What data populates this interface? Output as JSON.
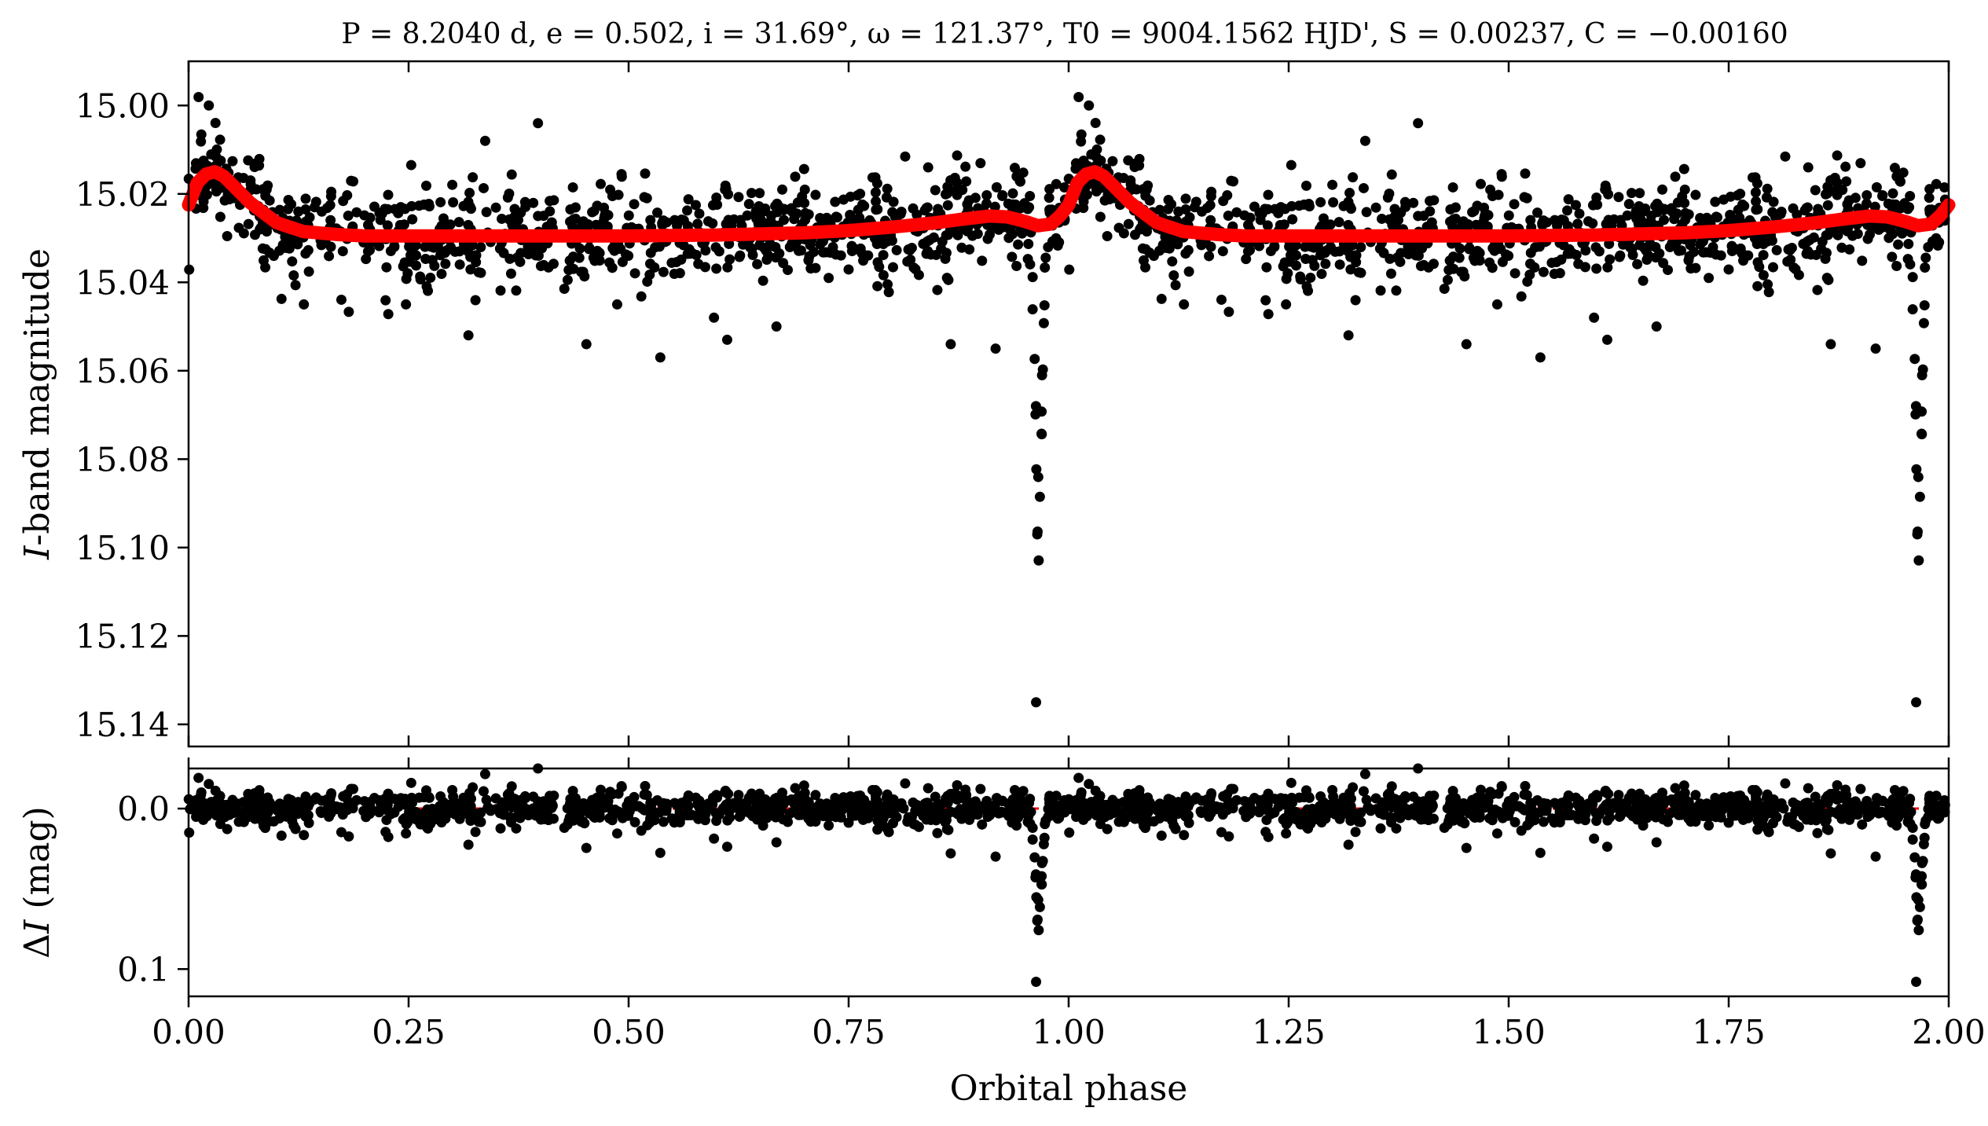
{
  "chart_data": [
    {
      "type": "scatter",
      "panel": "top",
      "title": "P = 8.2040 d, e = 0.502, i = 31.69°, ω = 121.37°, T0 = 9004.1562 HJD', S = 0.00237, C = −0.00160",
      "xlabel": "",
      "ylabel_italic": "I",
      "ylabel_rest": "-band magnitude",
      "xlim": [
        0.0,
        2.0
      ],
      "ylim": [
        15.145,
        14.99
      ],
      "y_inverted": true,
      "x_ticks": [
        0.0,
        0.25,
        0.5,
        0.75,
        1.0,
        1.25,
        1.5,
        1.75,
        2.0
      ],
      "y_ticks": [
        15.0,
        15.02,
        15.04,
        15.06,
        15.08,
        15.1,
        15.12,
        15.14
      ],
      "y_tick_labels": [
        "15.00",
        "15.02",
        "15.04",
        "15.06",
        "15.08",
        "15.10",
        "15.12",
        "15.14"
      ],
      "series": [
        {
          "role": "observations",
          "color": "#000000",
          "baseline_mag": 15.029,
          "scatter_mag": 0.0055,
          "points_per_cycle": 900,
          "eclipse": {
            "phase": 0.966,
            "depth": 0.075,
            "width": 0.008
          },
          "outliers": [
            {
              "x": 0.023,
              "y": 15.0
            },
            {
              "x": 0.397,
              "y": 15.004
            },
            {
              "x": 0.337,
              "y": 15.008
            },
            {
              "x": 0.318,
              "y": 15.052
            },
            {
              "x": 0.452,
              "y": 15.054
            },
            {
              "x": 0.536,
              "y": 15.057
            },
            {
              "x": 0.597,
              "y": 15.048
            },
            {
              "x": 0.612,
              "y": 15.053
            },
            {
              "x": 0.668,
              "y": 15.05
            },
            {
              "x": 0.866,
              "y": 15.054
            },
            {
              "x": 0.917,
              "y": 15.055
            },
            {
              "x": 0.963,
              "y": 15.135
            },
            {
              "x": 0.131,
              "y": 15.045
            },
            {
              "x": 0.247,
              "y": 15.045
            },
            {
              "x": 0.487,
              "y": 15.045
            }
          ]
        },
        {
          "role": "model",
          "color": "#ff0000",
          "x": [
            0.0,
            0.01,
            0.02,
            0.03,
            0.04,
            0.05,
            0.07,
            0.1,
            0.13,
            0.17,
            0.2,
            0.3,
            0.4,
            0.5,
            0.6,
            0.7,
            0.75,
            0.8,
            0.85,
            0.88,
            0.91,
            0.93,
            0.95,
            0.965,
            0.98,
            0.99,
            1.0
          ],
          "y": [
            15.0225,
            15.0175,
            15.0155,
            15.015,
            15.016,
            15.018,
            15.022,
            15.0265,
            15.0285,
            15.0292,
            15.0295,
            15.0295,
            15.0295,
            15.0295,
            15.0293,
            15.0288,
            15.0283,
            15.0275,
            15.0265,
            15.0257,
            15.025,
            15.0252,
            15.0262,
            15.0272,
            15.0268,
            15.025,
            15.0225
          ]
        }
      ]
    },
    {
      "type": "scatter",
      "panel": "bottom",
      "title": "",
      "xlabel": "Orbital phase",
      "ylabel_prefix": "Δ",
      "ylabel_italic": "I",
      "ylabel_rest": " (mag)",
      "xlim": [
        0.0,
        2.0
      ],
      "ylim": [
        0.117,
        -0.025
      ],
      "y_inverted": true,
      "x_ticks": [
        0.0,
        0.25,
        0.5,
        0.75,
        1.0,
        1.25,
        1.5,
        1.75,
        2.0
      ],
      "x_tick_labels": [
        "0.00",
        "0.25",
        "0.50",
        "0.75",
        "1.00",
        "1.25",
        "1.50",
        "1.75",
        "2.00"
      ],
      "y_ticks": [
        0.0,
        0.1
      ],
      "y_tick_labels": [
        "0.0",
        "0.1"
      ],
      "reference_line": {
        "y": 0.0,
        "color": "#ff0000",
        "style": "dashed"
      },
      "series": [
        {
          "role": "residuals",
          "color": "#000000",
          "scatter_mag": 0.0055
        }
      ]
    }
  ]
}
